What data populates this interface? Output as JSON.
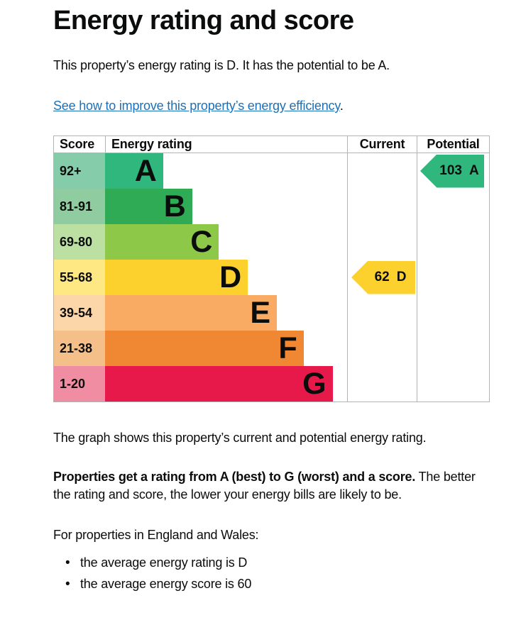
{
  "page": {
    "title": "Energy rating and score",
    "intro": "This property’s energy rating is D. It has the potential to be A.",
    "improve_link": {
      "text": "See how to improve this property’s energy efficiency",
      "suffix": "."
    },
    "graph_caption": "The graph shows this property’s current and potential energy rating.",
    "rating_explain": {
      "bold": "Properties get a rating from A (best) to G (worst) and a score.",
      "line1_rest": "The better",
      "line2": "the rating and score, the lower your energy bills are likely to be."
    },
    "regions_intro": "For properties in England and Wales:",
    "bullets": [
      "the average energy rating is D",
      "the average energy score is 60"
    ]
  },
  "chart_data": {
    "type": "bar",
    "title": "Energy rating and score",
    "columns": [
      "Score",
      "Energy rating",
      "Current",
      "Potential"
    ],
    "bands": [
      {
        "grade": "A",
        "score_range": "92+",
        "bar_pct": 24,
        "color": "#30b77e",
        "score_bg": "#85ccab"
      },
      {
        "grade": "B",
        "score_range": "81-91",
        "bar_pct": 36,
        "color": "#2fab55",
        "score_bg": "#8fcc9f"
      },
      {
        "grade": "C",
        "score_range": "69-80",
        "bar_pct": 47,
        "color": "#8dc849",
        "score_bg": "#bce0a2"
      },
      {
        "grade": "D",
        "score_range": "55-68",
        "bar_pct": 59,
        "color": "#fdd12d",
        "score_bg": "#fee884"
      },
      {
        "grade": "E",
        "score_range": "39-54",
        "bar_pct": 71,
        "color": "#f9ab63",
        "score_bg": "#fcd5a8"
      },
      {
        "grade": "F",
        "score_range": "21-38",
        "bar_pct": 82,
        "color": "#ef8733",
        "score_bg": "#f4bf89"
      },
      {
        "grade": "G",
        "score_range": "1-20",
        "bar_pct": 94,
        "color": "#e7194b",
        "score_bg": "#f18da2"
      }
    ],
    "current": {
      "value": "62",
      "grade": "D",
      "band_row": 3,
      "color": "#fdd12d"
    },
    "potential": {
      "value": "103",
      "grade": "A",
      "band_row": 0,
      "color": "#30b77e"
    },
    "legend_position": "none",
    "grid": false
  },
  "colors": {
    "text": "#0b0c0c",
    "link": "#1d70b8",
    "border": "#b1b4b6"
  }
}
